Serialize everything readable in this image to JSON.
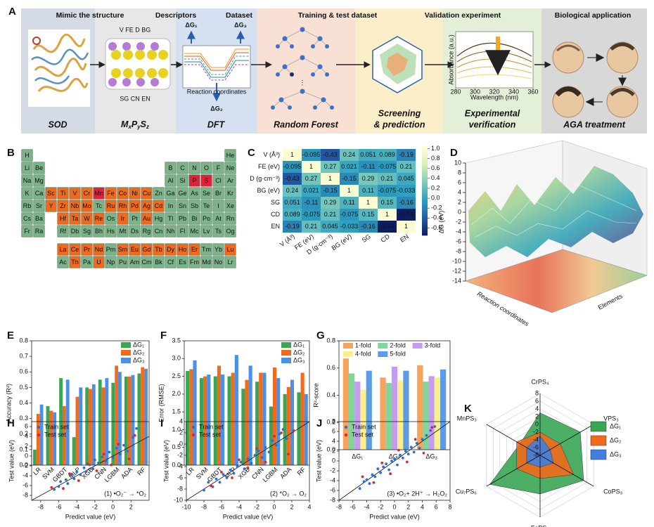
{
  "panel_labels": [
    "A",
    "B",
    "C",
    "D",
    "E",
    "F",
    "G",
    "H",
    "I",
    "J",
    "K"
  ],
  "workflow": {
    "headers": [
      "Mimic the structure",
      "Descriptors",
      "Dataset",
      "Training & test dataset",
      "Validation experiment",
      "Biological application"
    ],
    "captions": [
      [
        "SOD"
      ],
      [
        "DFT"
      ],
      [
        "Random Forest"
      ],
      [
        "Screening",
        "& prediction"
      ],
      [
        "Experimental",
        "verification"
      ],
      [
        "AGA treatment"
      ]
    ],
    "formula": [
      "M",
      "x",
      "P",
      "y",
      "S",
      "z"
    ],
    "descriptors": [
      "V  FE  D  BG",
      "SG  CN  EN"
    ],
    "dg_labels": [
      "ΔG₁",
      "ΔG₃",
      "ΔG₂"
    ],
    "dft_xlabel": "Reaction coordinates",
    "spectrum": {
      "ylabel": "Absorbance (a.u.)",
      "xlabel": "Wavelength (nm)",
      "xlim": [
        280,
        360
      ],
      "xticks": [
        280,
        300,
        320,
        340,
        360
      ]
    }
  },
  "periodic_table": {
    "rows": [
      [
        "H",
        null,
        null,
        null,
        null,
        null,
        null,
        null,
        null,
        null,
        null,
        null,
        null,
        null,
        null,
        null,
        null,
        "He"
      ],
      [
        "Li",
        "Be",
        null,
        null,
        null,
        null,
        null,
        null,
        null,
        null,
        null,
        null,
        "B",
        "C",
        "N",
        "O",
        "F",
        "Ne"
      ],
      [
        "Na",
        "Mg",
        null,
        null,
        null,
        null,
        null,
        null,
        null,
        null,
        null,
        null,
        "Al",
        "Si",
        "P",
        "S",
        "Cl",
        "Ar"
      ],
      [
        "K",
        "Ca",
        "Sc",
        "Ti",
        "V",
        "Cr",
        "Mn",
        "Fe",
        "Co",
        "Ni",
        "Cu",
        "Zn",
        "Ga",
        "Ge",
        "As",
        "Se",
        "Br",
        "Kr"
      ],
      [
        "Rb",
        "Sr",
        "Y",
        "Zr",
        "Nb",
        "Mo",
        "Tc",
        "Ru",
        "Rh",
        "Pd",
        "Ag",
        "Cd",
        "In",
        "Sn",
        "Sb",
        "Te",
        "I",
        "Xe"
      ],
      [
        "Cs",
        "Ba",
        null,
        "Hf",
        "Ta",
        "W",
        "Re",
        "Os",
        "Ir",
        "Pt",
        "Au",
        "Hg",
        "Tl",
        "Pb",
        "Bi",
        "Po",
        "At",
        "Rn"
      ],
      [
        "Fr",
        "Ra",
        null,
        "Rf",
        "Db",
        "Sg",
        "Bh",
        "Hs",
        "Mt",
        "Ds",
        "Rg",
        "Cn",
        "Nh",
        "Fl",
        "Mc",
        "Lv",
        "Ts",
        "Og"
      ]
    ],
    "f_rows": [
      [
        "La",
        "Ce",
        "Pr",
        "Nd",
        "Pm",
        "Sm",
        "Eu",
        "Gd",
        "Tb",
        "Dy",
        "Ho",
        "Er",
        "Tm",
        "Yb",
        "Lu"
      ],
      [
        "Ac",
        "Th",
        "Pa",
        "U",
        "Np",
        "Pu",
        "Am",
        "Cm",
        "Bk",
        "Cf",
        "Es",
        "Fm",
        "Md",
        "No",
        "Lr"
      ]
    ],
    "orange": [
      "Sc",
      "Ti",
      "V",
      "Cr",
      "Fe",
      "Co",
      "Ni",
      "Cu",
      "Y",
      "Zr",
      "Nb",
      "Mo",
      "Ru",
      "Rh",
      "Pd",
      "Ag",
      "Cd",
      "Hf",
      "Ta",
      "W",
      "Re",
      "Ir",
      "Au",
      "La",
      "Ce",
      "Pr",
      "Nd",
      "Sm",
      "Eu",
      "Gd",
      "Tb",
      "Dy",
      "Ho",
      "Er",
      "Lu",
      "Th",
      "U"
    ],
    "red": [
      "P",
      "S",
      "Mn"
    ],
    "colors": {
      "base": "#7db389",
      "orange": "#f06a1e",
      "red": "#e3203a"
    }
  },
  "surface": {
    "zlabel": "ΔG (eV)",
    "zlim": [
      -14,
      10
    ],
    "zticks": [
      10,
      8,
      6,
      4,
      2,
      0,
      -2,
      -4,
      -6,
      -8,
      -10,
      -12,
      -14
    ],
    "xlabel": "Reaction coordinates",
    "ylabel": "Elements"
  },
  "chart_data": [
    {
      "type": "heatmap",
      "x_labels": [
        "V (Å³)",
        "FE (eV)",
        "D (g·cm⁻³)",
        "BG (eV)",
        "SG",
        "CD",
        "EN"
      ],
      "y_labels": [
        "V (Å³)",
        "FE (eV)",
        "D (g·cm⁻³)",
        "BG (eV)",
        "SG",
        "CD",
        "EN"
      ],
      "values": [
        [
          1,
          -0.095,
          -0.43,
          0.24,
          0.051,
          0.089,
          -0.19
        ],
        [
          -0.095,
          1,
          0.27,
          0.021,
          -0.11,
          -0.075,
          0.21
        ],
        [
          -0.43,
          0.27,
          1,
          -0.15,
          0.29,
          0.21,
          0.045
        ],
        [
          0.24,
          0.021,
          -0.15,
          1,
          0.11,
          -0.075,
          -0.033
        ],
        [
          0.051,
          -0.11,
          0.29,
          0.11,
          1,
          0.15,
          -0.16
        ],
        [
          0.089,
          -0.075,
          0.21,
          -0.075,
          0.15,
          1,
          -0.74
        ],
        [
          -0.19,
          0.21,
          0.045,
          -0.033,
          -0.16,
          -0.74,
          1
        ]
      ],
      "zlim": [
        -0.75,
        1.05
      ],
      "zticks": [
        {
          "value": 1,
          "label": "1.0"
        },
        0.8,
        0.6,
        0.4,
        0.2,
        {
          "value": 0,
          "label": "0.0"
        },
        -0.2,
        -0.4,
        -0.6
      ],
      "colormap": [
        "#0d1b5e",
        "#225ea8",
        "#2ea1c0",
        "#7fcdbb",
        "#d9f0b3",
        "#ffffd9"
      ]
    },
    {
      "type": "bar",
      "ylabel": "Accuracy (R²)",
      "x_label_rotation": 45,
      "legend": "upper right",
      "categories": [
        "LR",
        "SVM",
        "GBDT",
        "MLP",
        "XGB",
        "CNN",
        "LGBM",
        "ADA",
        "RF"
      ],
      "ylim": [
        0,
        0.8
      ],
      "yticks": [
        {
          "value": 0,
          "label": "0.0"
        },
        0.1,
        0.2,
        0.3,
        0.4,
        0.5,
        0.6,
        0.7,
        0.8
      ],
      "series": [
        {
          "name": "ΔG₁",
          "color": "#3aa655",
          "values": [
            0.1,
            0.38,
            0.56,
            0.18,
            0.5,
            0.55,
            0.53,
            0.57,
            0.59
          ]
        },
        {
          "name": "ΔG₂",
          "color": "#f26a1b",
          "values": [
            0.33,
            0.35,
            0.38,
            0.44,
            0.49,
            0.5,
            0.64,
            0.57,
            0.63
          ]
        },
        {
          "name": "ΔG₃",
          "color": "#4c8fe8",
          "values": [
            0.39,
            0.34,
            0.55,
            0.5,
            0.52,
            0.56,
            0.6,
            0.58,
            0.62
          ]
        }
      ]
    },
    {
      "type": "bar",
      "ylabel": "Error (RMSE)",
      "x_label_rotation": 45,
      "legend": "upper right",
      "categories": [
        "LR",
        "SVM",
        "GBDT",
        "MLP",
        "XGB",
        "CNN",
        "LGBM",
        "ADA",
        "RF"
      ],
      "ylim": [
        0,
        3.5
      ],
      "yticks": [
        {
          "value": 0,
          "label": "0.0"
        },
        0.5,
        {
          "value": 1,
          "label": "1.0"
        },
        1.5,
        {
          "value": 2,
          "label": "2.0"
        },
        2.5,
        {
          "value": 3,
          "label": "3.0"
        },
        3.5
      ],
      "series": [
        {
          "name": "ΔG₁",
          "color": "#3aa655",
          "values": [
            2.65,
            2.45,
            2.5,
            2.5,
            2.15,
            2.35,
            1.65,
            2.0,
            2.05
          ]
        },
        {
          "name": "ΔG₂",
          "color": "#f26a1b",
          "values": [
            2.7,
            2.5,
            2.8,
            2.6,
            2.4,
            2.6,
            2.75,
            2.2,
            2.6
          ]
        },
        {
          "name": "ΔG₃",
          "color": "#4c8fe8",
          "values": [
            2.95,
            2.55,
            2.55,
            3.1,
            2.8,
            2.6,
            2.45,
            2.4,
            2.0
          ]
        }
      ]
    },
    {
      "type": "bar",
      "ylabel": "R²-score",
      "x_label_rotation": 0,
      "legend": "upper center",
      "categories": [
        "ΔG₁",
        "ΔG₂",
        "ΔG₃"
      ],
      "ylim": [
        0,
        0.8
      ],
      "yticks": [
        {
          "value": 0,
          "label": "0.0"
        },
        0.2,
        0.4,
        0.6,
        0.8
      ],
      "series": [
        {
          "name": "1-fold",
          "color": "#f7a35c",
          "values": [
            0.67,
            0.53,
            0.62
          ]
        },
        {
          "name": "2-fold",
          "color": "#7ed69a",
          "values": [
            0.56,
            0.49,
            0.5
          ]
        },
        {
          "name": "3-fold",
          "color": "#c69cf0",
          "values": [
            0.5,
            0.61,
            0.54
          ]
        },
        {
          "name": "4-fold",
          "color": "#fbf08a",
          "values": [
            0.44,
            0.51,
            0.53
          ]
        },
        {
          "name": "5-fold",
          "color": "#5b9be8",
          "values": [
            0.58,
            0.58,
            0.59
          ]
        }
      ]
    },
    {
      "type": "scatter",
      "xlabel": "Predict value (eV)",
      "ylabel": "Test value (eV)",
      "annotation": "(1) •O₂⁻ → *O₂",
      "diagonal": true,
      "legend": "upper left",
      "xlim": [
        -9,
        4
      ],
      "ylim": [
        -9,
        7
      ],
      "xticks": [
        -8,
        -6,
        -4,
        -2,
        0,
        2
      ],
      "yticks": [
        -8,
        -6,
        -4,
        -2,
        0,
        2,
        4,
        6
      ],
      "series": [
        {
          "name": "Train set",
          "color": "#2a6fd6",
          "x": [
            -6.5,
            -6,
            -5.8,
            -5.2,
            -5,
            -4.6,
            -4.3,
            -4,
            -3.6,
            -3.2,
            -3,
            -2.6,
            -2.2,
            -2,
            -1.6,
            -1.2,
            -0.8,
            -0.4,
            0,
            0.4,
            0.8,
            1.2,
            1.6,
            2.2,
            2.6
          ],
          "y": [
            -6.8,
            -6.2,
            -5.2,
            -4.8,
            -5.6,
            -3.8,
            -4.6,
            -3.2,
            -3.8,
            -2.4,
            -3.2,
            -1.8,
            -2.6,
            -0.8,
            -1.4,
            -0.2,
            -1,
            0.8,
            -0.4,
            1.6,
            0.4,
            2.2,
            1,
            3.8,
            5.6
          ]
        },
        {
          "name": "Test set",
          "color": "#e0262f",
          "x": [
            -6.8,
            -5.5,
            -4.8,
            -3.8,
            -2.8,
            -1.8,
            -1,
            -0.2,
            0.6,
            1.8,
            2.4
          ],
          "y": [
            -6.4,
            -6.6,
            -3.6,
            -5,
            -1.6,
            -3,
            0.4,
            -1.8,
            2.4,
            -0.6,
            4.2
          ]
        }
      ]
    },
    {
      "type": "scatter",
      "xlabel": "Predict value (eV)",
      "ylabel": "Test value (eV)",
      "annotation": "(2) *O₂ → O₂",
      "diagonal": true,
      "legend": "upper left",
      "xlim": [
        -10,
        4
      ],
      "ylim": [
        -10,
        4
      ],
      "xticks": [
        -10,
        -8,
        -6,
        -4,
        -2,
        0,
        2,
        4
      ],
      "yticks": [
        -10,
        -8,
        -6,
        -4,
        -2,
        0,
        2,
        4
      ],
      "series": [
        {
          "name": "Train set",
          "color": "#2a6fd6",
          "x": [
            -8,
            -7.5,
            -7,
            -6.6,
            -6.2,
            -5.8,
            -5.4,
            -5,
            -4.6,
            -4.2,
            -3.8,
            -3.4,
            -3,
            -2.6,
            -2.2,
            -1.8,
            -1.4,
            -1,
            -0.6,
            -0.2,
            0.2,
            0.6,
            1,
            1.4
          ],
          "y": [
            -8.2,
            -6.8,
            -7.6,
            -6.2,
            -6.8,
            -5.4,
            -6,
            -4.6,
            -5.2,
            -4,
            -3.2,
            -4.4,
            -2.6,
            -3.4,
            -2,
            -1.2,
            -2.4,
            -0.6,
            -1.4,
            0.6,
            -0.2,
            1.8,
            2.6,
            1
          ]
        },
        {
          "name": "Test set",
          "color": "#e0262f",
          "x": [
            -7.2,
            -6,
            -4.8,
            -4,
            -3,
            -2,
            -1,
            0,
            0.8,
            1.6,
            2.2
          ],
          "y": [
            -7.4,
            -5,
            -6,
            -2.8,
            -4.2,
            -0.8,
            -3.2,
            1.4,
            2,
            -1.8,
            2.4
          ]
        }
      ]
    },
    {
      "type": "scatter",
      "xlabel": "Predict value (eV)",
      "ylabel": "Test value (eV)",
      "annotation": "(3) •O₂+ 2H⁺ → H₂O₂",
      "diagonal": true,
      "legend": "upper left",
      "xlim": [
        -8,
        8
      ],
      "ylim": [
        -8,
        8
      ],
      "xticks": [
        -8,
        -6,
        -4,
        -2,
        0,
        2,
        4,
        6,
        8
      ],
      "yticks": [
        -8,
        -6,
        -4,
        -2,
        0,
        2,
        4,
        6,
        8
      ],
      "series": [
        {
          "name": "Train set",
          "color": "#2a6fd6",
          "x": [
            -5,
            -4.4,
            -4,
            -3.6,
            -3.2,
            -2.8,
            -2.4,
            -2,
            -1.6,
            -1.2,
            -0.8,
            -0.4,
            0,
            0.4,
            0.8,
            1.2,
            1.6,
            2,
            2.4,
            2.8,
            3.2,
            3.6,
            4,
            4.6,
            5.2,
            5.8
          ],
          "y": [
            -5.6,
            -4.2,
            -3.8,
            -4.6,
            -2.8,
            -3.2,
            -1.6,
            -2.4,
            -1.2,
            -0.6,
            -1.8,
            0,
            0.4,
            -0.8,
            1.2,
            0.6,
            2,
            1.4,
            2.8,
            1.8,
            3.6,
            2.6,
            4.4,
            5.2,
            6.2,
            7
          ]
        },
        {
          "name": "Test set",
          "color": "#e0262f",
          "x": [
            -4.6,
            -3,
            -1.8,
            -0.6,
            0.6,
            1.8,
            3,
            4.2,
            5.4
          ],
          "y": [
            -3.2,
            -4.4,
            -0.4,
            -2.6,
            2.2,
            -0.2,
            4.4,
            1.6,
            6.8
          ]
        }
      ]
    },
    {
      "type": "radar",
      "legend": "right",
      "categories": [
        "CrPS₄",
        "VPS₃",
        "CoPS₃",
        "FePS₃",
        "Cu₇PS₆",
        "MnPS₃"
      ],
      "rlim": [
        -8,
        8
      ],
      "rticks": [
        8,
        6,
        4,
        2,
        0,
        -2,
        -4,
        -6,
        -8
      ],
      "series": [
        {
          "name": "ΔG₁",
          "color": "#3aa655",
          "values": [
            3,
            4,
            5,
            2,
            7,
            -2
          ]
        },
        {
          "name": "ΔG₂",
          "color": "#f26a1b",
          "values": [
            -2,
            -2,
            2,
            -2,
            -1,
            -1
          ]
        },
        {
          "name": "ΔG₃",
          "color": "#3f7fe0",
          "values": [
            -3,
            -5,
            -4,
            -5,
            -4,
            -4
          ]
        }
      ]
    }
  ]
}
